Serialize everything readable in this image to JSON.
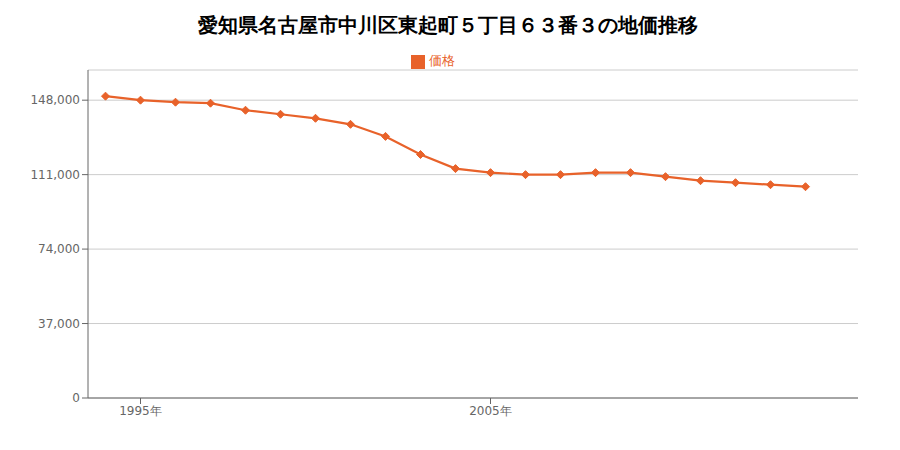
{
  "chart_data": {
    "type": "line",
    "title": "愛知県名古屋市中川区東起町５丁目６３番３の地価推移",
    "x": [
      1994,
      1995,
      1996,
      1997,
      1998,
      1999,
      2000,
      2001,
      2002,
      2003,
      2004,
      2005,
      2006,
      2007,
      2008,
      2009,
      2010,
      2011,
      2012,
      2013,
      2014
    ],
    "series": [
      {
        "name": "価格",
        "color": "#E8622A",
        "marker": "diamond",
        "values": [
          150000,
          148000,
          147000,
          146500,
          143000,
          141000,
          139000,
          136000,
          130000,
          121000,
          114000,
          112000,
          111000,
          111000,
          112000,
          112000,
          110000,
          108000,
          107000,
          106000,
          105000
        ]
      }
    ],
    "xlim": [
      1993.5,
      2015.5
    ],
    "xticks": [
      {
        "value": 1995,
        "label": "1995年"
      },
      {
        "value": 2005,
        "label": "2005年"
      }
    ],
    "ylim": [
      0,
      163000
    ],
    "yticks": [
      0,
      {
        "value": 37000,
        "label": "37,000"
      },
      {
        "value": 74000,
        "label": "74,000"
      },
      {
        "value": 111000,
        "label": "111,000"
      },
      {
        "value": 148000,
        "label": "148,000"
      }
    ],
    "grid": true,
    "legend": "top"
  }
}
